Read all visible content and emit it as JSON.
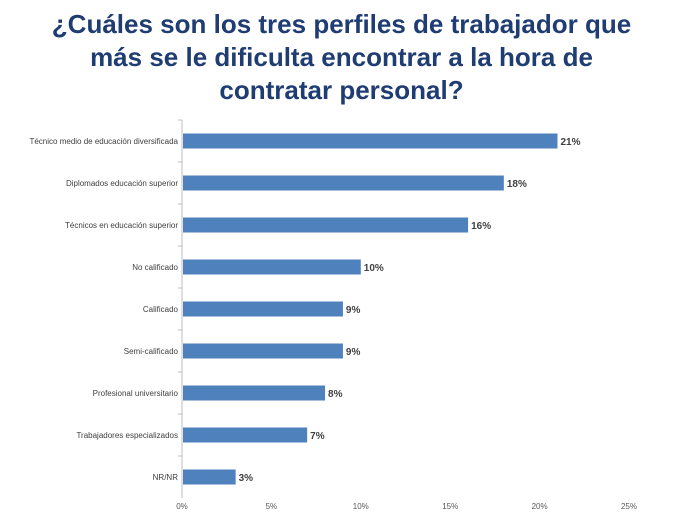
{
  "title_lines": [
    "¿Cuáles son los tres perfiles de trabajador que",
    "más se le dificulta encontrar a la hora de",
    "contratar personal?"
  ],
  "chart_data": {
    "type": "bar",
    "orientation": "horizontal",
    "title": "¿Cuáles son los tres perfiles de trabajador que más se le dificulta encontrar a la hora de contratar personal?",
    "categories": [
      "Técnico medio de educación diversificada",
      "Diplomados educación superior",
      "Técnicos en educación superior",
      "No calificado",
      "Calificado",
      "Semi-calificado",
      "Profesional universitario",
      "Trabajadores especializados",
      "NR/NR"
    ],
    "values": [
      21,
      18,
      16,
      10,
      9,
      9,
      8,
      7,
      3
    ],
    "value_labels": [
      "21%",
      "18%",
      "16%",
      "10%",
      "9%",
      "9%",
      "8%",
      "7%",
      "3%"
    ],
    "xlim": [
      0,
      25
    ],
    "x_ticks": [
      0,
      5,
      10,
      15,
      20,
      25
    ],
    "x_tick_labels": [
      "0%",
      "5%",
      "10%",
      "15%",
      "20%",
      "25%"
    ],
    "bar_color": "#4f81bd",
    "grid": false,
    "legend": "none"
  }
}
